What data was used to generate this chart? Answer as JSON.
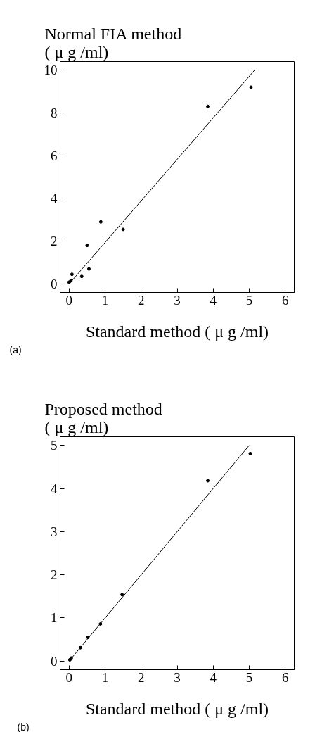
{
  "chart_data": [
    {
      "type": "scatter",
      "ylabel": "Normal FIA method\n( μ g /ml)",
      "xlabel": "Standard method ( μ g /ml)",
      "annotations": [
        "(a)"
      ],
      "xlim": [
        -0.25,
        6.25
      ],
      "ylim": [
        -0.4,
        10.4
      ],
      "xticks": [
        0,
        1,
        2,
        3,
        4,
        5,
        6
      ],
      "yticks": [
        0,
        2,
        4,
        6,
        8,
        10
      ],
      "line_style": "solid",
      "series": [
        {
          "color": "#000000",
          "marker": "circle",
          "x": [
            0.0,
            0.05,
            0.08,
            0.35,
            0.5,
            0.55,
            0.88,
            1.5,
            3.85,
            5.05
          ],
          "values": [
            0.08,
            0.15,
            0.45,
            0.35,
            1.8,
            0.7,
            2.9,
            2.55,
            8.3,
            9.2
          ]
        },
        {
          "type": "line",
          "color": "#000000",
          "x": [
            0,
            5.15
          ],
          "values": [
            0,
            10
          ]
        }
      ]
    },
    {
      "type": "scatter",
      "ylabel": "Proposed method\n( μ g /ml)",
      "xlabel": "Standard method ( μ g /ml)",
      "annotations": [
        "(b)"
      ],
      "xlim": [
        -0.25,
        6.25
      ],
      "ylim": [
        -0.2,
        5.2
      ],
      "xticks": [
        0,
        1,
        2,
        3,
        4,
        5,
        6
      ],
      "yticks": [
        0,
        1,
        2,
        3,
        4,
        5
      ],
      "line_style": "solid",
      "series": [
        {
          "color": "#000000",
          "marker": "circle",
          "x": [
            0.02,
            0.06,
            0.31,
            0.52,
            0.87,
            1.47,
            3.85,
            5.03
          ],
          "values": [
            0.03,
            0.07,
            0.31,
            0.55,
            0.86,
            1.54,
            4.18,
            4.81
          ]
        },
        {
          "type": "line",
          "color": "#000000",
          "x": [
            0,
            5
          ],
          "values": [
            0,
            5
          ]
        }
      ]
    }
  ]
}
